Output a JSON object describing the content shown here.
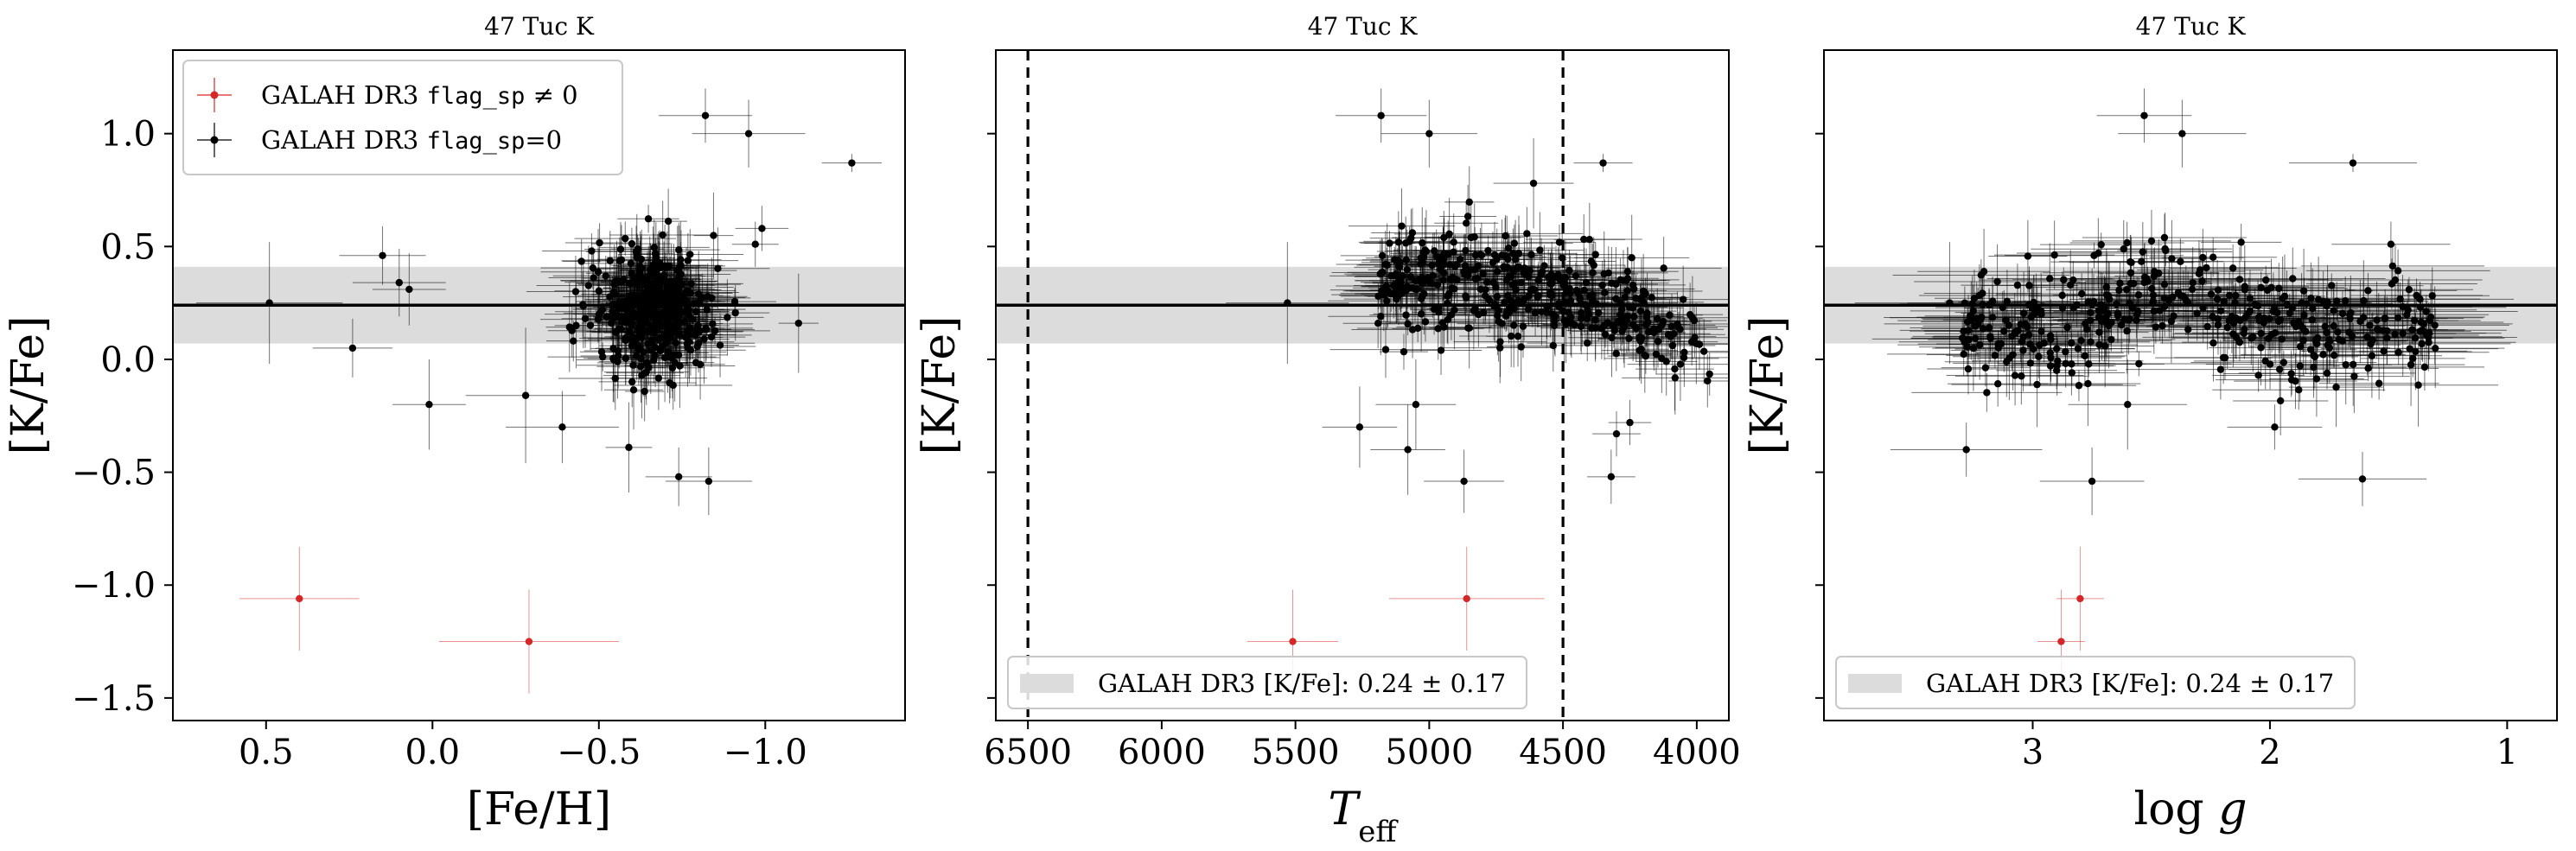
{
  "colors": {
    "black": "#000000",
    "flagged": "#d62728",
    "band": "#dcdcdc",
    "band_edge": "#bdbdbd"
  },
  "band": {
    "center": 0.24,
    "low": 0.07,
    "high": 0.41
  },
  "chart_data": [
    {
      "type": "scatter",
      "title": "47 Tuc K",
      "xlabel": "[Fe/H]",
      "ylabel": "[K/Fe]",
      "xlim": [
        0.78,
        -1.42
      ],
      "ylim": [
        -1.6,
        1.37
      ],
      "x_inverted": true,
      "xticks": [
        0.5,
        0.0,
        -0.5,
        -1.0
      ],
      "xtick_labels": [
        "0.5",
        "0.0",
        "−0.5",
        "−1.0"
      ],
      "yticks": [
        1.0,
        0.5,
        0.0,
        -0.5,
        -1.0,
        -1.5
      ],
      "ytick_labels": [
        "1.0",
        "0.5",
        "0.0",
        "−0.5",
        "−1.0",
        "−1.5"
      ],
      "hline": 0.24,
      "band": [
        0.07,
        0.41
      ],
      "legend": {
        "position": "upper left",
        "entries": [
          {
            "prefix": "GALAH DR3 ",
            "code": "flag_sp",
            "suffix": " ≠ 0",
            "color": "#d62728"
          },
          {
            "prefix": "GALAH DR3 ",
            "code": "flag_sp",
            "suffix": "=0",
            "color": "#000000"
          }
        ]
      },
      "series": [
        {
          "name": "GALAH DR3 flag_sp ≠ 0",
          "color": "#d62728",
          "points": [
            {
              "x": 0.4,
              "y": -1.06,
              "xerr": 0.18,
              "yerr": 0.23
            },
            {
              "x": -0.29,
              "y": -1.25,
              "xerr": 0.27,
              "yerr": 0.23
            }
          ]
        },
        {
          "name": "GALAH DR3 flag_sp=0",
          "color": "#000000",
          "points": [
            {
              "x": -1.26,
              "y": 0.87,
              "xerr": 0.09,
              "yerr": 0.04
            },
            {
              "x": -0.82,
              "y": 1.08,
              "xerr": 0.14,
              "yerr": 0.12
            },
            {
              "x": -0.95,
              "y": 1.0,
              "xerr": 0.17,
              "yerr": 0.15
            },
            {
              "x": -0.99,
              "y": 0.58,
              "xerr": 0.08,
              "yerr": 0.1
            },
            {
              "x": -0.97,
              "y": 0.51,
              "xerr": 0.07,
              "yerr": 0.1
            },
            {
              "x": -1.1,
              "y": 0.16,
              "xerr": 0.06,
              "yerr": 0.22
            },
            {
              "x": 0.49,
              "y": 0.25,
              "xerr": 0.22,
              "yerr": 0.27
            },
            {
              "x": 0.24,
              "y": 0.05,
              "xerr": 0.12,
              "yerr": 0.13
            },
            {
              "x": 0.01,
              "y": -0.2,
              "xerr": 0.11,
              "yerr": 0.2
            },
            {
              "x": -0.28,
              "y": -0.16,
              "xerr": 0.18,
              "yerr": 0.3
            },
            {
              "x": -0.39,
              "y": -0.3,
              "xerr": 0.17,
              "yerr": 0.16
            },
            {
              "x": -0.59,
              "y": -0.39,
              "xerr": 0.07,
              "yerr": 0.2
            },
            {
              "x": -0.74,
              "y": -0.52,
              "xerr": 0.1,
              "yerr": 0.13
            },
            {
              "x": -0.83,
              "y": -0.54,
              "xerr": 0.13,
              "yerr": 0.15
            },
            {
              "x": 0.15,
              "y": 0.46,
              "xerr": 0.13,
              "yerr": 0.13
            },
            {
              "x": 0.1,
              "y": 0.34,
              "xerr": 0.14,
              "yerr": 0.15
            },
            {
              "x": 0.07,
              "y": 0.31,
              "xerr": 0.11,
              "yerr": 0.16
            }
          ]
        }
      ]
    },
    {
      "type": "scatter",
      "title": "47 Tuc K",
      "xlabel": "T_eff",
      "ylabel": "[K/Fe]",
      "xlim": [
        6620,
        3880
      ],
      "ylim": [
        -1.6,
        1.37
      ],
      "x_inverted": true,
      "xticks": [
        6500,
        6000,
        5500,
        5000,
        4500,
        4000
      ],
      "xtick_labels": [
        "6500",
        "6000",
        "5500",
        "5000",
        "4500",
        "4000"
      ],
      "yticks": [
        1.0,
        0.5,
        0.0,
        -0.5,
        -1.0,
        -1.5
      ],
      "vlines": [
        6500,
        4500
      ],
      "hline": 0.24,
      "band": [
        0.07,
        0.41
      ],
      "legend": {
        "position": "lower left",
        "entries": [
          {
            "prefix": "GALAH DR3 [K/Fe]: ",
            "code": "",
            "suffix": "0.24 ± 0.17",
            "color": "#dcdcdc"
          }
        ]
      },
      "series": [
        {
          "name": "GALAH DR3 flag_sp ≠ 0",
          "color": "#d62728",
          "points": [
            {
              "x": 5510,
              "y": -1.25,
              "xerr": 170,
              "yerr": 0.23
            },
            {
              "x": 4860,
              "y": -1.06,
              "xerr": 290,
              "yerr": 0.23
            }
          ]
        },
        {
          "name": "GALAH DR3 flag_sp=0",
          "color": "#000000",
          "points": [
            {
              "x": 5180,
              "y": 1.08,
              "xerr": 170,
              "yerr": 0.12
            },
            {
              "x": 5000,
              "y": 1.0,
              "xerr": 180,
              "yerr": 0.15
            },
            {
              "x": 4350,
              "y": 0.87,
              "xerr": 110,
              "yerr": 0.04
            },
            {
              "x": 4610,
              "y": 0.78,
              "xerr": 150,
              "yerr": 0.2
            },
            {
              "x": 4870,
              "y": -0.54,
              "xerr": 150,
              "yerr": 0.14
            },
            {
              "x": 4320,
              "y": -0.52,
              "xerr": 90,
              "yerr": 0.12
            },
            {
              "x": 5260,
              "y": -0.3,
              "xerr": 140,
              "yerr": 0.18
            },
            {
              "x": 4300,
              "y": -0.33,
              "xerr": 90,
              "yerr": 0.1
            },
            {
              "x": 4250,
              "y": -0.28,
              "xerr": 80,
              "yerr": 0.1
            },
            {
              "x": 5530,
              "y": 0.25,
              "xerr": 230,
              "yerr": 0.27
            },
            {
              "x": 5080,
              "y": -0.4,
              "xerr": 140,
              "yerr": 0.2
            },
            {
              "x": 5050,
              "y": -0.2,
              "xerr": 150,
              "yerr": 0.2
            }
          ]
        }
      ]
    },
    {
      "type": "scatter",
      "title": "47 Tuc K",
      "xlabel": "log g",
      "ylabel": "[K/Fe]",
      "xlim": [
        3.88,
        0.79
      ],
      "ylim": [
        -1.6,
        1.37
      ],
      "x_inverted": true,
      "xticks": [
        3,
        2,
        1
      ],
      "xtick_labels": [
        "3",
        "2",
        "1"
      ],
      "yticks": [
        1.0,
        0.5,
        0.0,
        -0.5,
        -1.0,
        -1.5
      ],
      "hline": 0.24,
      "band": [
        0.07,
        0.41
      ],
      "legend": {
        "position": "lower left",
        "entries": [
          {
            "prefix": "GALAH DR3 [K/Fe]: ",
            "code": "",
            "suffix": "0.24 ± 0.17",
            "color": "#dcdcdc"
          }
        ]
      },
      "series": [
        {
          "name": "GALAH DR3 flag_sp ≠ 0",
          "color": "#d62728",
          "points": [
            {
              "x": 2.88,
              "y": -1.25,
              "xerr": 0.1,
              "yerr": 0.23
            },
            {
              "x": 2.8,
              "y": -1.06,
              "xerr": 0.1,
              "yerr": 0.23
            }
          ]
        },
        {
          "name": "GALAH DR3 flag_sp=0",
          "color": "#000000",
          "points": [
            {
              "x": 2.53,
              "y": 1.08,
              "xerr": 0.2,
              "yerr": 0.12
            },
            {
              "x": 2.37,
              "y": 1.0,
              "xerr": 0.27,
              "yerr": 0.15
            },
            {
              "x": 1.65,
              "y": 0.87,
              "xerr": 0.27,
              "yerr": 0.04
            },
            {
              "x": 1.49,
              "y": 0.51,
              "xerr": 0.25,
              "yerr": 0.1
            },
            {
              "x": 3.28,
              "y": -0.4,
              "xerr": 0.32,
              "yerr": 0.12
            },
            {
              "x": 2.75,
              "y": -0.54,
              "xerr": 0.22,
              "yerr": 0.15
            },
            {
              "x": 1.61,
              "y": -0.53,
              "xerr": 0.27,
              "yerr": 0.12
            },
            {
              "x": 1.98,
              "y": -0.3,
              "xerr": 0.2,
              "yerr": 0.1
            },
            {
              "x": 2.6,
              "y": -0.2,
              "xerr": 0.25,
              "yerr": 0.2
            },
            {
              "x": 3.35,
              "y": 0.25,
              "xerr": 0.4,
              "yerr": 0.27
            }
          ]
        }
      ]
    }
  ]
}
